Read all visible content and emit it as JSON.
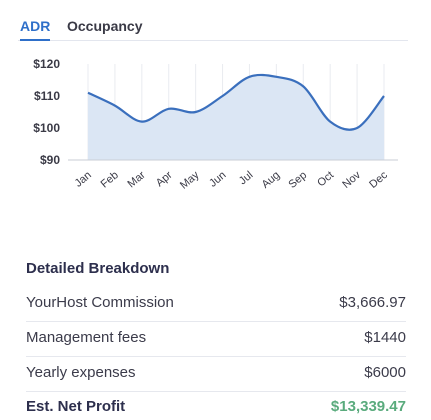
{
  "tabs": [
    {
      "label": "ADR",
      "active": true
    },
    {
      "label": "Occupancy",
      "active": false
    }
  ],
  "chart_data": {
    "type": "area",
    "title": "",
    "xlabel": "",
    "ylabel": "",
    "categories": [
      "Jan",
      "Feb",
      "Mar",
      "Apr",
      "May",
      "Jun",
      "Jul",
      "Aug",
      "Sep",
      "Oct",
      "Nov",
      "Dec"
    ],
    "series": [
      {
        "values": [
          111,
          107,
          102,
          106,
          105,
          110,
          116,
          116,
          113,
          102,
          100,
          110
        ]
      }
    ],
    "y_ticks": [
      "$120",
      "$110",
      "$100",
      "$90"
    ],
    "ylim": [
      90,
      120
    ],
    "grid": "vertical",
    "line_color": "#3a6fbd",
    "fill_color": "#dbe6f4"
  },
  "breakdown": {
    "title": "Detailed Breakdown",
    "rows": [
      {
        "label": "YourHost Commission",
        "value": "$3,666.97"
      },
      {
        "label": "Management fees",
        "value": "$1440"
      },
      {
        "label": "Yearly expenses",
        "value": "$6000"
      }
    ],
    "total": {
      "label": "Est. Net Profit",
      "value": "$13,339.47",
      "color": "#5aab7d"
    }
  }
}
